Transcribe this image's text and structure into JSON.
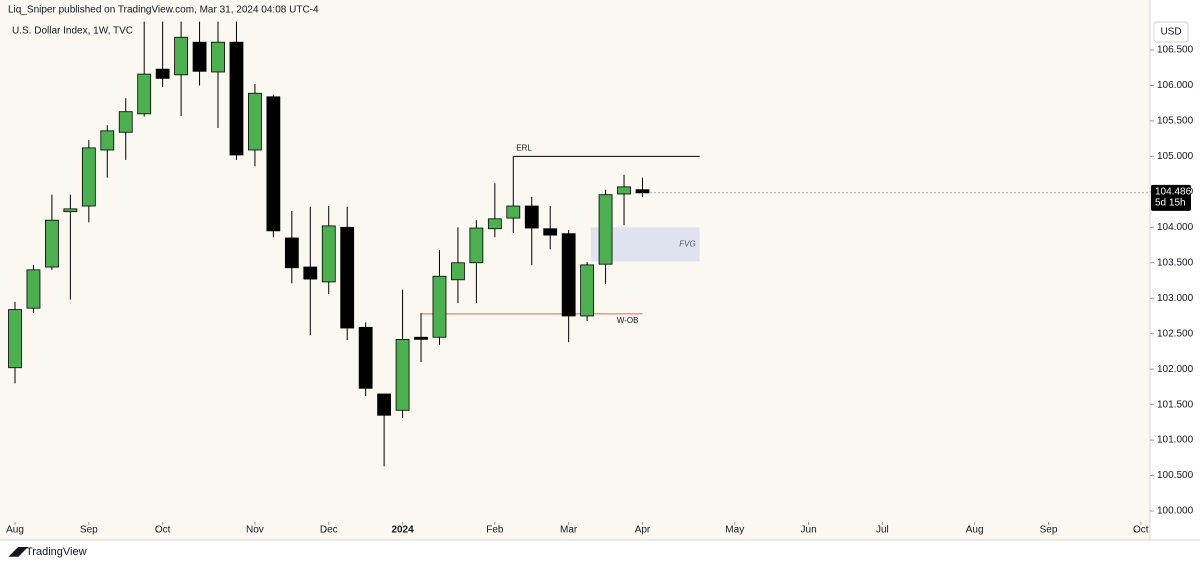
{
  "header": {
    "publisher": "Liq_Sniper published on TradingView.com, Mar 31, 2024 04:08 UTC-4",
    "footer": "TradingView"
  },
  "chart_data": {
    "type": "candlestick",
    "title": "U.S. Dollar Index, 1W, TVC",
    "currency": "USD",
    "up_color": "#4caf50",
    "down_color": "#000000",
    "x": [
      0,
      1,
      2,
      3,
      4,
      5,
      6,
      7,
      8,
      9,
      10,
      11,
      12,
      13,
      14,
      15,
      16,
      17,
      18,
      19,
      20,
      21,
      22,
      23,
      24,
      25,
      26,
      27,
      28,
      29,
      30,
      31,
      32,
      33,
      34
    ],
    "open": [
      102.02,
      102.86,
      103.44,
      104.22,
      104.3,
      105.09,
      105.34,
      105.6,
      106.23,
      106.15,
      106.61,
      106.19,
      106.61,
      105.09,
      105.84,
      103.85,
      103.44,
      103.23,
      104.0,
      102.59,
      101.65,
      101.42,
      102.45,
      102.45,
      103.26,
      103.5,
      103.98,
      104.13,
      104.3,
      103.98,
      103.91,
      102.75,
      103.48,
      104.47,
      104.53
    ],
    "high": [
      102.95,
      103.47,
      104.46,
      104.46,
      105.23,
      105.44,
      105.82,
      106.9,
      106.9,
      106.9,
      106.9,
      106.9,
      106.9,
      106.02,
      105.87,
      104.23,
      104.29,
      104.3,
      104.29,
      102.66,
      101.65,
      103.12,
      102.79,
      103.68,
      104.0,
      104.1,
      104.62,
      105.0,
      104.43,
      104.3,
      103.96,
      103.51,
      104.53,
      104.74,
      104.7
    ],
    "low": [
      101.8,
      102.79,
      103.4,
      102.98,
      104.07,
      104.7,
      104.95,
      105.56,
      105.98,
      105.57,
      106.0,
      105.4,
      104.95,
      104.86,
      103.86,
      103.21,
      102.48,
      103.06,
      102.41,
      101.62,
      100.63,
      101.31,
      102.1,
      102.34,
      102.93,
      102.93,
      103.86,
      103.92,
      103.47,
      103.69,
      102.38,
      102.68,
      103.2,
      104.03,
      104.43
    ],
    "close": [
      102.84,
      103.4,
      104.1,
      104.26,
      105.12,
      105.36,
      105.63,
      106.16,
      106.1,
      106.68,
      106.2,
      106.61,
      105.02,
      105.89,
      103.95,
      103.43,
      103.27,
      104.02,
      102.58,
      101.73,
      101.35,
      102.42,
      102.42,
      103.31,
      103.5,
      103.99,
      104.12,
      104.3,
      103.99,
      103.89,
      102.75,
      103.47,
      104.46,
      104.57,
      104.486
    ],
    "countdown": "5d 15h",
    "xlim": [
      -0.813,
      61.5
    ],
    "ylim": [
      99.845,
      106.923
    ],
    "xticks": [
      {
        "value": 0,
        "label": "Aug"
      },
      {
        "value": 4,
        "label": "Sep"
      },
      {
        "value": 8,
        "label": "Oct"
      },
      {
        "value": 13,
        "label": "Nov"
      },
      {
        "value": 17,
        "label": "Dec"
      },
      {
        "value": 21,
        "label": "2024"
      },
      {
        "value": 26,
        "label": "Feb"
      },
      {
        "value": 30,
        "label": "Mar"
      },
      {
        "value": 34,
        "label": "Apr"
      },
      {
        "value": 39,
        "label": "May"
      },
      {
        "value": 43,
        "label": "Jun"
      },
      {
        "value": 47,
        "label": "Jul"
      },
      {
        "value": 52,
        "label": "Aug"
      },
      {
        "value": 56,
        "label": "Sep"
      },
      {
        "value": 61,
        "label": "Oct"
      }
    ],
    "yticks": [
      {
        "value": 100,
        "label": "100.000"
      },
      {
        "value": 100.5,
        "label": "100.500"
      },
      {
        "value": 101,
        "label": "101.000"
      },
      {
        "value": 101.5,
        "label": "101.500"
      },
      {
        "value": 102,
        "label": "102.000"
      },
      {
        "value": 102.5,
        "label": "102.500"
      },
      {
        "value": 103,
        "label": "103.000"
      },
      {
        "value": 103.5,
        "label": "103.500"
      },
      {
        "value": 104,
        "label": "104.000"
      },
      {
        "value": 104.5,
        "label": "104.500"
      },
      {
        "value": 105,
        "label": "105.000"
      },
      {
        "value": 105.5,
        "label": "105.500"
      },
      {
        "value": 106,
        "label": "106.000"
      },
      {
        "value": 106.5,
        "label": "106.500"
      }
    ],
    "annotations": [
      {
        "label": "ERL",
        "kind": "line",
        "y": 105.0,
        "x": [
          27,
          37.1
        ],
        "color": "#000000"
      },
      {
        "label": "FVG",
        "kind": "box",
        "y": [
          103.52,
          104.0
        ],
        "x": [
          31.2,
          37.1
        ],
        "color": "#dfe3f0"
      },
      {
        "label": "W-OB",
        "kind": "line",
        "y": 102.78,
        "x": [
          22,
          34
        ],
        "color": "#e06666"
      }
    ]
  }
}
